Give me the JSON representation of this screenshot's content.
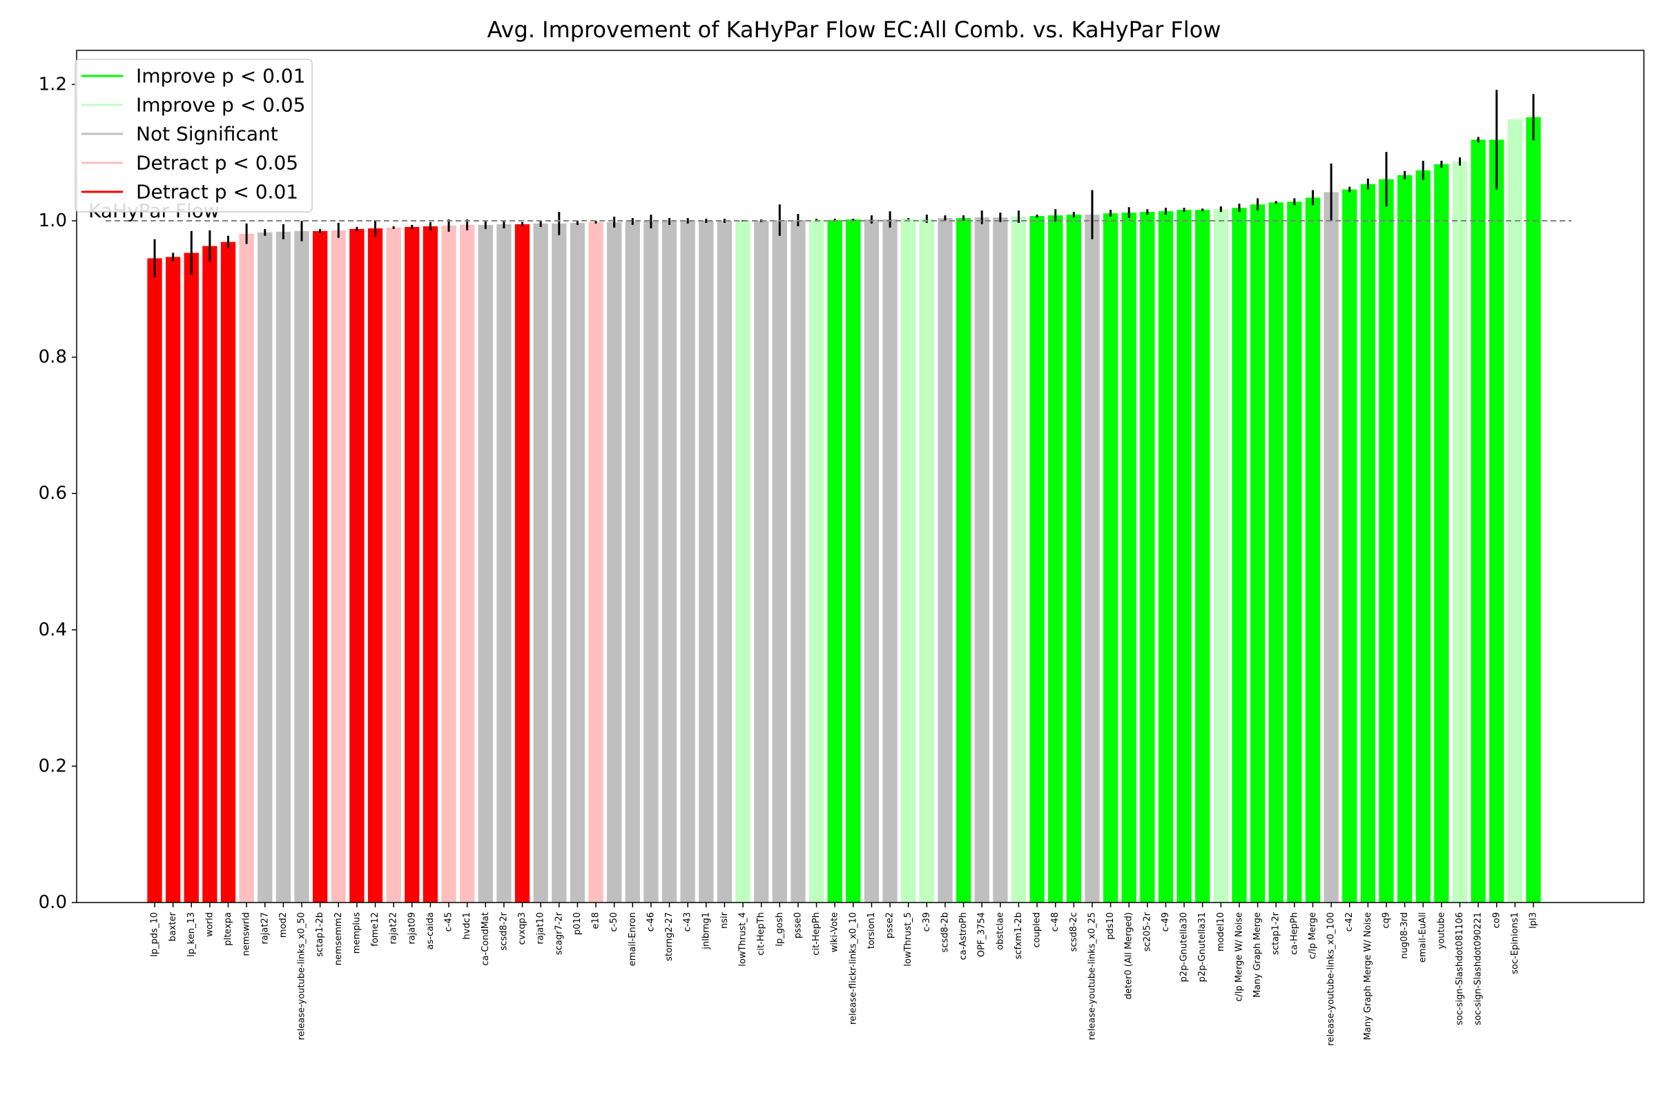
{
  "chart_data": {
    "type": "bar",
    "title": "Avg. Improvement of KaHyPar Flow EC:All Comb. vs. KaHyPar Flow",
    "xlabel": "",
    "ylabel": "",
    "ylim": [
      0,
      1.25
    ],
    "yticks": [
      "0.0",
      "0.2",
      "0.4",
      "0.6",
      "0.8",
      "1.0",
      "1.2"
    ],
    "grid": false,
    "legend_position": "top-left",
    "reference_line": {
      "value": 1.0,
      "label": "KaHyPar Flow",
      "color": "#808080",
      "style": "dashed"
    },
    "colors": {
      "improve_01": "#00ff00",
      "improve_05": "#bfffbf",
      "not_significant": "#bfbfbf",
      "detract_05": "#ffbfbf",
      "detract_01": "#ff0000",
      "error_bar": "#000000"
    },
    "legend": [
      {
        "label": "Improve p < 0.01",
        "color": "#00ff00"
      },
      {
        "label": "Improve p < 0.05",
        "color": "#bfffbf"
      },
      {
        "label": "Not Significant",
        "color": "#bfbfbf"
      },
      {
        "label": "Detract p < 0.05",
        "color": "#ffbfbf"
      },
      {
        "label": "Detract p < 0.01",
        "color": "#ff0000"
      }
    ],
    "bars": [
      {
        "category": "lp_pds_10",
        "value": 0.945,
        "err": 0.028,
        "significance": "Detract p < 0.01"
      },
      {
        "category": "baxter",
        "value": 0.947,
        "err": 0.006,
        "significance": "Detract p < 0.01"
      },
      {
        "category": "lp_ken_13",
        "value": 0.953,
        "err": 0.032,
        "significance": "Detract p < 0.01"
      },
      {
        "category": "world",
        "value": 0.963,
        "err": 0.023,
        "significance": "Detract p < 0.01"
      },
      {
        "category": "pltexpa",
        "value": 0.969,
        "err": 0.009,
        "significance": "Detract p < 0.01"
      },
      {
        "category": "nemswrld",
        "value": 0.981,
        "err": 0.015,
        "significance": "Detract p < 0.05"
      },
      {
        "category": "rajat27",
        "value": 0.983,
        "err": 0.005,
        "significance": "Not Significant"
      },
      {
        "category": "mod2",
        "value": 0.984,
        "err": 0.011,
        "significance": "Not Significant"
      },
      {
        "category": "release-youtube-links_x0_50",
        "value": 0.985,
        "err": 0.015,
        "significance": "Not Significant"
      },
      {
        "category": "sctap1-2b",
        "value": 0.985,
        "err": 0.003,
        "significance": "Detract p < 0.01"
      },
      {
        "category": "nemsemm2",
        "value": 0.986,
        "err": 0.011,
        "significance": "Detract p < 0.05"
      },
      {
        "category": "memplus",
        "value": 0.988,
        "err": 0.003,
        "significance": "Detract p < 0.01"
      },
      {
        "category": "fome12",
        "value": 0.989,
        "err": 0.012,
        "significance": "Detract p < 0.01"
      },
      {
        "category": "rajat22",
        "value": 0.99,
        "err": 0.002,
        "significance": "Detract p < 0.05"
      },
      {
        "category": "rajat09",
        "value": 0.991,
        "err": 0.003,
        "significance": "Detract p < 0.01"
      },
      {
        "category": "as-caida",
        "value": 0.992,
        "err": 0.006,
        "significance": "Detract p < 0.01"
      },
      {
        "category": "c-45",
        "value": 0.993,
        "err": 0.009,
        "significance": "Detract p < 0.05"
      },
      {
        "category": "hvdc1",
        "value": 0.994,
        "err": 0.008,
        "significance": "Detract p < 0.05"
      },
      {
        "category": "ca-CondMat",
        "value": 0.994,
        "err": 0.006,
        "significance": "Not Significant"
      },
      {
        "category": "scsd8-2r",
        "value": 0.995,
        "err": 0.006,
        "significance": "Not Significant"
      },
      {
        "category": "cvxqp3",
        "value": 0.995,
        "err": 0.003,
        "significance": "Detract p < 0.01"
      },
      {
        "category": "rajat10",
        "value": 0.996,
        "err": 0.005,
        "significance": "Not Significant"
      },
      {
        "category": "scagr7-2r",
        "value": 0.996,
        "err": 0.017,
        "significance": "Not Significant"
      },
      {
        "category": "p010",
        "value": 0.997,
        "err": 0.003,
        "significance": "Not Significant"
      },
      {
        "category": "e18",
        "value": 0.998,
        "err": 0.002,
        "significance": "Detract p < 0.05"
      },
      {
        "category": "c-50",
        "value": 0.998,
        "err": 0.008,
        "significance": "Not Significant"
      },
      {
        "category": "email-Enron",
        "value": 0.999,
        "err": 0.005,
        "significance": "Not Significant"
      },
      {
        "category": "c-46",
        "value": 0.999,
        "err": 0.01,
        "significance": "Not Significant"
      },
      {
        "category": "storng2-27",
        "value": 0.999,
        "err": 0.005,
        "significance": "Not Significant"
      },
      {
        "category": "c-43",
        "value": 1.0,
        "err": 0.004,
        "significance": "Not Significant"
      },
      {
        "category": "jnlbrng1",
        "value": 1.0,
        "err": 0.003,
        "significance": "Not Significant"
      },
      {
        "category": "nsir",
        "value": 1.0,
        "err": 0.003,
        "significance": "Not Significant"
      },
      {
        "category": "lowThrust_4",
        "value": 1.0,
        "err": 0.001,
        "significance": "Improve p < 0.05"
      },
      {
        "category": "cit-HepTh",
        "value": 1.0,
        "err": 0.002,
        "significance": "Not Significant"
      },
      {
        "category": "lp_gosh",
        "value": 1.001,
        "err": 0.023,
        "significance": "Not Significant"
      },
      {
        "category": "psse0",
        "value": 1.001,
        "err": 0.009,
        "significance": "Not Significant"
      },
      {
        "category": "cit-HepPh",
        "value": 1.001,
        "err": 0.002,
        "significance": "Improve p < 0.05"
      },
      {
        "category": "wiki-Vote",
        "value": 1.001,
        "err": 0.002,
        "significance": "Improve p < 0.01"
      },
      {
        "category": "release-flickr-links_x0_10",
        "value": 1.002,
        "err": 0.001,
        "significance": "Improve p < 0.01"
      },
      {
        "category": "torsion1",
        "value": 1.002,
        "err": 0.006,
        "significance": "Not Significant"
      },
      {
        "category": "psse2",
        "value": 1.002,
        "err": 0.012,
        "significance": "Not Significant"
      },
      {
        "category": "lowThrust_5",
        "value": 1.003,
        "err": 0.001,
        "significance": "Improve p < 0.05"
      },
      {
        "category": "c-39",
        "value": 1.003,
        "err": 0.006,
        "significance": "Improve p < 0.05"
      },
      {
        "category": "scsd8-2b",
        "value": 1.004,
        "err": 0.004,
        "significance": "Not Significant"
      },
      {
        "category": "ca-AstroPh",
        "value": 1.004,
        "err": 0.004,
        "significance": "Improve p < 0.01"
      },
      {
        "category": "OPF_3754",
        "value": 1.005,
        "err": 0.01,
        "significance": "Not Significant"
      },
      {
        "category": "obstclae",
        "value": 1.005,
        "err": 0.007,
        "significance": "Not Significant"
      },
      {
        "category": "scfxm1-2b",
        "value": 1.006,
        "err": 0.009,
        "significance": "Improve p < 0.05"
      },
      {
        "category": "coupled",
        "value": 1.007,
        "err": 0.002,
        "significance": "Improve p < 0.01"
      },
      {
        "category": "c-48",
        "value": 1.008,
        "err": 0.009,
        "significance": "Improve p < 0.01"
      },
      {
        "category": "scsd8-2c",
        "value": 1.009,
        "err": 0.004,
        "significance": "Improve p < 0.01"
      },
      {
        "category": "release-youtube-links_x0_25",
        "value": 1.009,
        "err": 0.036,
        "significance": "Not Significant"
      },
      {
        "category": "pds10",
        "value": 1.011,
        "err": 0.005,
        "significance": "Improve p < 0.01"
      },
      {
        "category": "deter0 (All Merged)",
        "value": 1.012,
        "err": 0.008,
        "significance": "Improve p < 0.01"
      },
      {
        "category": "sc205-2r",
        "value": 1.013,
        "err": 0.004,
        "significance": "Improve p < 0.01"
      },
      {
        "category": "c-49",
        "value": 1.014,
        "err": 0.005,
        "significance": "Improve p < 0.01"
      },
      {
        "category": "p2p-Gnutella30",
        "value": 1.016,
        "err": 0.003,
        "significance": "Improve p < 0.01"
      },
      {
        "category": "p2p-Gnutella31",
        "value": 1.016,
        "err": 0.002,
        "significance": "Improve p < 0.01"
      },
      {
        "category": "model10",
        "value": 1.017,
        "err": 0.004,
        "significance": "Improve p < 0.05"
      },
      {
        "category": "c/lp Merge W/ Noise",
        "value": 1.019,
        "err": 0.006,
        "significance": "Improve p < 0.01"
      },
      {
        "category": "Many Graph Merge",
        "value": 1.024,
        "err": 0.009,
        "significance": "Improve p < 0.01"
      },
      {
        "category": "sctap1-2r",
        "value": 1.027,
        "err": 0.002,
        "significance": "Improve p < 0.01"
      },
      {
        "category": "ca-HepPh",
        "value": 1.028,
        "err": 0.005,
        "significance": "Improve p < 0.01"
      },
      {
        "category": "c/lp Merge",
        "value": 1.034,
        "err": 0.011,
        "significance": "Improve p < 0.01"
      },
      {
        "category": "release-youtube-links_x0_100",
        "value": 1.042,
        "err": 0.042,
        "significance": "Not Significant"
      },
      {
        "category": "c-42",
        "value": 1.046,
        "err": 0.004,
        "significance": "Improve p < 0.01"
      },
      {
        "category": "Many Graph Merge W/ Noise",
        "value": 1.054,
        "err": 0.008,
        "significance": "Improve p < 0.01"
      },
      {
        "category": "cq9",
        "value": 1.061,
        "err": 0.04,
        "significance": "Improve p < 0.01"
      },
      {
        "category": "nug08-3rd",
        "value": 1.067,
        "err": 0.006,
        "significance": "Improve p < 0.01"
      },
      {
        "category": "email-EuAll",
        "value": 1.074,
        "err": 0.014,
        "significance": "Improve p < 0.01"
      },
      {
        "category": "youtube",
        "value": 1.083,
        "err": 0.005,
        "significance": "Improve p < 0.01"
      },
      {
        "category": "soc-sign-Slashdot081106",
        "value": 1.087,
        "err": 0.006,
        "significance": "Improve p < 0.05"
      },
      {
        "category": "soc-sign-Slashdot090221",
        "value": 1.119,
        "err": 0.004,
        "significance": "Improve p < 0.01"
      },
      {
        "category": "co9",
        "value": 1.119,
        "err": 0.073,
        "significance": "Improve p < 0.01"
      },
      {
        "category": "soc-Epinions1",
        "value": 1.149,
        "err": 0.0,
        "significance": "Improve p < 0.05"
      },
      {
        "category": "lpl3",
        "value": 1.152,
        "err": 0.034,
        "significance": "Improve p < 0.01"
      }
    ]
  }
}
